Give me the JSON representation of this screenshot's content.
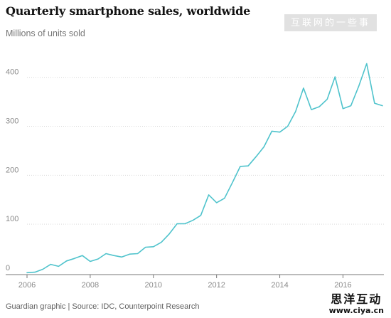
{
  "header": {
    "title": "Quarterly smartphone sales, worldwide",
    "subtitle": "Millions of units sold"
  },
  "footer": {
    "credit": "Guardian graphic | Source: IDC, Counterpoint Research"
  },
  "watermarks": {
    "top": "互联网的一些事",
    "bottom_main": "思洋互动",
    "bottom_sub": "www.ciya.cn"
  },
  "colors": {
    "line": "#4fc3cc",
    "title": "#121212",
    "axis_text": "#8a8a8a",
    "grid": "#d9d9d9"
  },
  "chart_data": {
    "type": "line",
    "title": "Quarterly smartphone sales, worldwide",
    "subtitle": "Millions of units sold",
    "xlabel": "",
    "ylabel": "",
    "grid": true,
    "xlim": [
      2006,
      2017.25
    ],
    "ylim": [
      0,
      430
    ],
    "x_ticks": [
      2006,
      2008,
      2010,
      2012,
      2014,
      2016
    ],
    "y_ticks": [
      0,
      100,
      200,
      300,
      400
    ],
    "x": [
      2006.0,
      2006.25,
      2006.5,
      2006.75,
      2007.0,
      2007.25,
      2007.5,
      2007.75,
      2008.0,
      2008.25,
      2008.5,
      2008.75,
      2009.0,
      2009.25,
      2009.5,
      2009.75,
      2010.0,
      2010.25,
      2010.5,
      2010.75,
      2011.0,
      2011.25,
      2011.5,
      2011.75,
      2012.0,
      2012.25,
      2012.5,
      2012.75,
      2013.0,
      2013.25,
      2013.5,
      2013.75,
      2014.0,
      2014.25,
      2014.5,
      2014.75,
      2015.0,
      2015.25,
      2015.5,
      2015.75,
      2016.0,
      2016.25,
      2016.5,
      2016.75,
      2017.0,
      2017.25
    ],
    "values": [
      1,
      2,
      8,
      18,
      14,
      25,
      30,
      36,
      24,
      29,
      40,
      36,
      33,
      39,
      40,
      53,
      54,
      63,
      80,
      101,
      101,
      108,
      118,
      160,
      144,
      153,
      185,
      218,
      219,
      238,
      258,
      290,
      288,
      300,
      330,
      378,
      334,
      340,
      355,
      401,
      336,
      342,
      382,
      428,
      347,
      342
    ]
  }
}
